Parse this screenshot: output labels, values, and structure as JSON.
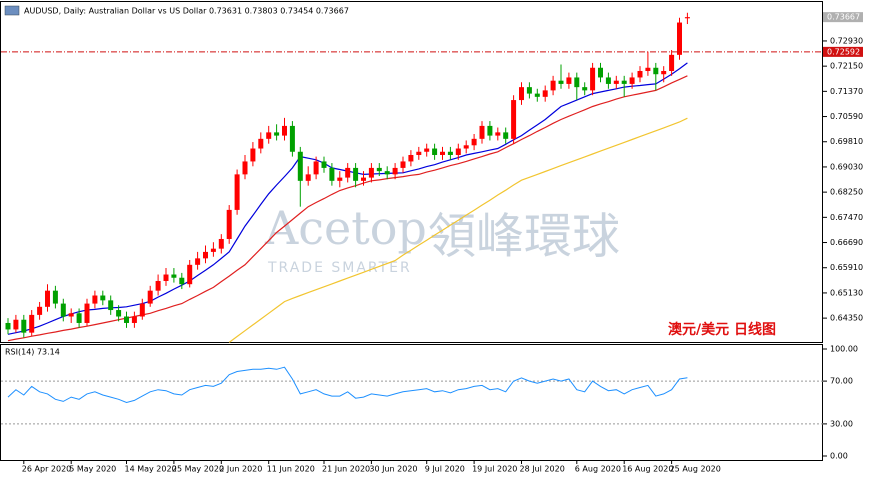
{
  "chart_data": [
    {
      "type": "candlestick",
      "title": "AUDUSD, Daily:  Australian Dollar vs US Dollar  0.73631 0.73803 0.73454 0.73667",
      "watermark": "Acetop",
      "watermark_cn": "領峰環球",
      "watermark_tag": "TRADE SMARTER",
      "annotation": "澳元/美元  日线图",
      "categories": [
        null,
        null,
        "26 Apr 2020",
        null,
        null,
        null,
        null,
        null,
        "5 May 2020",
        null,
        null,
        null,
        null,
        null,
        null,
        "14 May 2020",
        null,
        null,
        null,
        null,
        null,
        "25 May 2020",
        null,
        null,
        null,
        null,
        null,
        "2 Jun 2020",
        null,
        null,
        null,
        null,
        null,
        "11 Jun 2020",
        null,
        null,
        null,
        null,
        null,
        null,
        "21 Jun 2020",
        null,
        null,
        null,
        null,
        null,
        "30 Jun 2020",
        null,
        null,
        null,
        null,
        null,
        null,
        "9 Jul 2020",
        null,
        null,
        null,
        null,
        null,
        "19 Jul 2020",
        null,
        null,
        null,
        null,
        null,
        "28 Jul 2020",
        null,
        null,
        null,
        null,
        null,
        null,
        "6 Aug 2020",
        null,
        null,
        null,
        null,
        null,
        "16 Aug 2020",
        null,
        null,
        null,
        null,
        null,
        "25 Aug 2020",
        null,
        null
      ],
      "open": [
        0.642,
        0.64,
        0.643,
        0.639,
        0.6445,
        0.647,
        0.652,
        0.648,
        0.644,
        0.645,
        0.642,
        0.648,
        0.6505,
        0.649,
        0.646,
        0.644,
        0.642,
        0.644,
        0.648,
        0.652,
        0.655,
        0.657,
        0.656,
        0.654,
        0.66,
        0.662,
        0.664,
        0.665,
        0.668,
        0.677,
        0.688,
        0.692,
        0.696,
        0.699,
        0.701,
        0.7,
        0.703,
        0.695,
        0.686,
        0.688,
        0.692,
        0.69,
        0.686,
        0.687,
        0.69,
        0.686,
        0.687,
        0.69,
        0.689,
        0.688,
        0.69,
        0.692,
        0.694,
        0.695,
        0.696,
        0.694,
        0.695,
        0.694,
        0.696,
        0.697,
        0.699,
        0.703,
        0.7,
        0.701,
        0.699,
        0.711,
        0.715,
        0.713,
        0.712,
        0.714,
        0.717,
        0.716,
        0.718,
        0.715,
        0.714,
        0.721,
        0.718,
        0.716,
        0.717,
        0.716,
        0.718,
        0.72,
        0.721,
        0.719,
        0.72,
        0.725,
        0.73631
      ],
      "high": [
        0.6435,
        0.6445,
        0.6445,
        0.646,
        0.6485,
        0.654,
        0.6535,
        0.6495,
        0.6465,
        0.6465,
        0.6495,
        0.652,
        0.652,
        0.6505,
        0.6475,
        0.6455,
        0.6455,
        0.6495,
        0.6535,
        0.657,
        0.659,
        0.659,
        0.6575,
        0.6615,
        0.664,
        0.666,
        0.667,
        0.6695,
        0.6785,
        0.6895,
        0.694,
        0.698,
        0.701,
        0.703,
        0.7035,
        0.7055,
        0.7045,
        0.6965,
        0.6905,
        0.6935,
        0.6935,
        0.6915,
        0.689,
        0.6915,
        0.6915,
        0.689,
        0.6915,
        0.6915,
        0.6905,
        0.6915,
        0.6935,
        0.6955,
        0.6965,
        0.6975,
        0.6975,
        0.6965,
        0.6965,
        0.6975,
        0.6985,
        0.7005,
        0.7045,
        0.7045,
        0.7025,
        0.7025,
        0.7125,
        0.7165,
        0.7165,
        0.7145,
        0.7155,
        0.7185,
        0.722,
        0.7195,
        0.7195,
        0.7165,
        0.7225,
        0.7225,
        0.7195,
        0.7185,
        0.7185,
        0.7195,
        0.7215,
        0.726,
        0.7225,
        0.7215,
        0.7265,
        0.7365,
        0.73803
      ],
      "low": [
        0.6385,
        0.639,
        0.6375,
        0.638,
        0.643,
        0.6455,
        0.6465,
        0.6425,
        0.642,
        0.6405,
        0.641,
        0.6465,
        0.6475,
        0.6445,
        0.6425,
        0.6405,
        0.6405,
        0.643,
        0.647,
        0.6505,
        0.6535,
        0.6545,
        0.6525,
        0.653,
        0.6585,
        0.6605,
        0.6625,
        0.6635,
        0.6665,
        0.6755,
        0.6865,
        0.6905,
        0.6945,
        0.6975,
        0.6985,
        0.6985,
        0.6935,
        0.678,
        0.6845,
        0.6865,
        0.6885,
        0.6845,
        0.684,
        0.6855,
        0.684,
        0.6845,
        0.6855,
        0.6875,
        0.6865,
        0.6865,
        0.6885,
        0.6905,
        0.6925,
        0.6935,
        0.6925,
        0.6925,
        0.6925,
        0.6925,
        0.6945,
        0.6955,
        0.6975,
        0.6985,
        0.6985,
        0.6975,
        0.6975,
        0.7095,
        0.7115,
        0.7105,
        0.7105,
        0.7125,
        0.7145,
        0.7145,
        0.711,
        0.7125,
        0.7125,
        0.7165,
        0.7145,
        0.7145,
        0.712,
        0.7145,
        0.7165,
        0.7185,
        0.714,
        0.7165,
        0.7185,
        0.7235,
        0.73454
      ],
      "close": [
        0.64,
        0.643,
        0.639,
        0.6445,
        0.647,
        0.652,
        0.648,
        0.644,
        0.645,
        0.642,
        0.648,
        0.6505,
        0.649,
        0.646,
        0.644,
        0.642,
        0.644,
        0.648,
        0.652,
        0.655,
        0.657,
        0.656,
        0.654,
        0.66,
        0.662,
        0.664,
        0.665,
        0.668,
        0.677,
        0.688,
        0.692,
        0.696,
        0.699,
        0.701,
        0.7,
        0.703,
        0.695,
        0.686,
        0.688,
        0.692,
        0.69,
        0.686,
        0.687,
        0.69,
        0.686,
        0.687,
        0.69,
        0.689,
        0.688,
        0.69,
        0.692,
        0.694,
        0.695,
        0.696,
        0.694,
        0.695,
        0.694,
        0.696,
        0.697,
        0.699,
        0.703,
        0.7,
        0.701,
        0.699,
        0.711,
        0.715,
        0.713,
        0.712,
        0.714,
        0.717,
        0.716,
        0.718,
        0.715,
        0.714,
        0.721,
        0.718,
        0.716,
        0.717,
        0.716,
        0.718,
        0.72,
        0.721,
        0.719,
        0.72,
        0.725,
        0.735,
        0.73667
      ],
      "up_color": "#ff0000",
      "down_color": "#00a000",
      "lines": [
        {
          "color": "#0000dd",
          "values": [
            0.6385,
            0.639,
            0.6395,
            0.6402,
            0.641,
            0.642,
            0.643,
            0.644,
            0.6448,
            0.6455,
            0.646,
            0.6462,
            0.6465,
            0.6467,
            0.6468,
            0.647,
            0.6475,
            0.648,
            0.6487,
            0.65,
            0.6512,
            0.6525,
            0.6537,
            0.655,
            0.6567,
            0.6583,
            0.66,
            0.662,
            0.664,
            0.668,
            0.672,
            0.6753,
            0.6787,
            0.682,
            0.6847,
            0.6873,
            0.69,
            0.6935,
            0.693,
            0.6925,
            0.6915,
            0.69,
            0.6895,
            0.689,
            0.6885,
            0.688,
            0.6881,
            0.6882,
            0.6883,
            0.6884,
            0.6885,
            0.6891,
            0.6897,
            0.6904,
            0.691,
            0.6918,
            0.6925,
            0.6932,
            0.694,
            0.6945,
            0.695,
            0.6955,
            0.696,
            0.6973,
            0.6987,
            0.7,
            0.7017,
            0.7033,
            0.705,
            0.707,
            0.709,
            0.71,
            0.711,
            0.712,
            0.713,
            0.7135,
            0.714,
            0.7145,
            0.715,
            0.7153,
            0.7155,
            0.7158,
            0.716,
            0.7175,
            0.719,
            0.7207,
            0.7225
          ]
        },
        {
          "color": "#e02020",
          "values": [
            0.6365,
            0.637,
            0.6374,
            0.6379,
            0.6383,
            0.6388,
            0.6392,
            0.6397,
            0.6401,
            0.6406,
            0.641,
            0.6415,
            0.642,
            0.6425,
            0.643,
            0.6435,
            0.644,
            0.6445,
            0.645,
            0.6458,
            0.6465,
            0.6473,
            0.648,
            0.6493,
            0.6505,
            0.6518,
            0.653,
            0.6548,
            0.6565,
            0.6583,
            0.66,
            0.6625,
            0.665,
            0.6675,
            0.67,
            0.672,
            0.674,
            0.676,
            0.678,
            0.6793,
            0.6805,
            0.6818,
            0.683,
            0.6838,
            0.6845,
            0.6853,
            0.686,
            0.6863,
            0.6867,
            0.687,
            0.6873,
            0.6877,
            0.688,
            0.6887,
            0.6893,
            0.69,
            0.6907,
            0.6913,
            0.692,
            0.6928,
            0.6935,
            0.6943,
            0.695,
            0.6963,
            0.6975,
            0.6988,
            0.7,
            0.7013,
            0.7025,
            0.7038,
            0.705,
            0.706,
            0.707,
            0.708,
            0.709,
            0.7098,
            0.7105,
            0.7113,
            0.712,
            0.7125,
            0.713,
            0.7135,
            0.714,
            0.7151,
            0.7163,
            0.7174,
            0.7185
          ]
        },
        {
          "color": "#f2c530",
          "values": [
            null,
            null,
            null,
            null,
            null,
            null,
            null,
            null,
            null,
            null,
            null,
            null,
            null,
            null,
            null,
            null,
            null,
            null,
            null,
            null,
            null,
            null,
            null,
            null,
            null,
            null,
            null,
            null,
            0.636,
            0.6378,
            0.6396,
            0.6414,
            0.6432,
            0.645,
            0.6468,
            0.6486,
            0.6496,
            0.6505,
            0.6514,
            0.6523,
            0.6532,
            0.6541,
            0.655,
            0.6559,
            0.6568,
            0.6577,
            0.6586,
            0.6595,
            0.6604,
            0.6613,
            0.663,
            0.6645,
            0.6661,
            0.6676,
            0.6692,
            0.6707,
            0.6723,
            0.6738,
            0.6754,
            0.6769,
            0.6785,
            0.68,
            0.6816,
            0.6831,
            0.6847,
            0.6862,
            0.6871,
            0.688,
            0.6889,
            0.6898,
            0.6907,
            0.6916,
            0.6925,
            0.6934,
            0.6943,
            0.6952,
            0.6961,
            0.697,
            0.6979,
            0.6988,
            0.6997,
            0.7006,
            0.7015,
            0.7024,
            0.7033,
            0.7042,
            0.7054
          ]
        }
      ],
      "hline": {
        "value": 0.72592,
        "label": "0.72592",
        "color": "#d01010"
      },
      "last_price": {
        "value": 0.73667,
        "label": "0.73667"
      },
      "ylim": [
        0.6358,
        0.7395
      ],
      "yticks": [
        {
          "value": 0.7293,
          "label": "0.72930"
        },
        {
          "value": 0.7215,
          "label": "0.72150"
        },
        {
          "value": 0.7137,
          "label": "0.71370"
        },
        {
          "value": 0.7059,
          "label": "0.70590"
        },
        {
          "value": 0.6981,
          "label": "0.69810"
        },
        {
          "value": 0.6903,
          "label": "0.69030"
        },
        {
          "value": 0.6825,
          "label": "0.68250"
        },
        {
          "value": 0.6747,
          "label": "0.67470"
        },
        {
          "value": 0.6669,
          "label": "0.66690"
        },
        {
          "value": 0.6591,
          "label": "0.65910"
        },
        {
          "value": 0.6513,
          "label": "0.65130"
        },
        {
          "value": 0.6435,
          "label": "0.64350"
        }
      ]
    },
    {
      "type": "line",
      "title": "RSI(14) 73.14",
      "color": "#1e90ff",
      "values": [
        55,
        62,
        57,
        65,
        60,
        58,
        53,
        51,
        55,
        53,
        58,
        60,
        57,
        55,
        53,
        50,
        52,
        56,
        60,
        62,
        61,
        58,
        57,
        62,
        64,
        66,
        65,
        68,
        76,
        79,
        80,
        81,
        81,
        82,
        81,
        83,
        72,
        58,
        60,
        62,
        58,
        56,
        56,
        60,
        54,
        55,
        58,
        57,
        56,
        58,
        60,
        61,
        62,
        63,
        60,
        61,
        59,
        62,
        63,
        65,
        66,
        62,
        63,
        60,
        70,
        73,
        70,
        68,
        70,
        72,
        70,
        72,
        62,
        60,
        70,
        65,
        61,
        62,
        58,
        62,
        64,
        66,
        56,
        58,
        62,
        72,
        73.14
      ],
      "levels": [
        70,
        30
      ],
      "ylim": [
        0,
        100
      ],
      "yticks": [
        {
          "value": 100,
          "label": "100.00"
        },
        {
          "value": 70,
          "label": "70.00"
        },
        {
          "value": 30,
          "label": "30.00"
        },
        {
          "value": 0,
          "label": "0.00"
        }
      ]
    }
  ]
}
